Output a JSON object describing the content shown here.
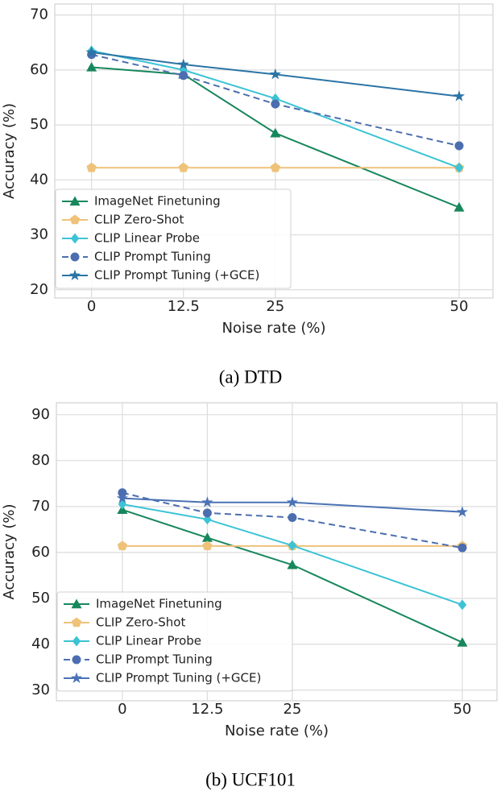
{
  "chart_data": [
    {
      "type": "line",
      "caption": "(a) DTD",
      "xlabel": "Noise rate (%)",
      "ylabel": "Accuracy (%)",
      "x": [
        0,
        12.5,
        25,
        50
      ],
      "xlim": [
        -5,
        54.6
      ],
      "xticks": [
        0,
        12.5,
        25,
        50
      ],
      "ylim": [
        18.5,
        72
      ],
      "yticks": [
        20,
        30,
        40,
        50,
        60,
        70
      ],
      "grid": true,
      "legend": "lower left",
      "series": [
        {
          "name": "ImageNet Finetuning",
          "color": "#17875c",
          "marker": "triangle",
          "dashed": false,
          "values": [
            60.5,
            59.2,
            48.5,
            35.0
          ]
        },
        {
          "name": "CLIP Zero-Shot",
          "color": "#efc27a",
          "marker": "pentagon",
          "dashed": false,
          "values": [
            42.2,
            42.2,
            42.2,
            42.2
          ]
        },
        {
          "name": "CLIP Linear Probe",
          "color": "#3cc3d5",
          "marker": "diamond",
          "dashed": false,
          "values": [
            63.5,
            60.0,
            54.8,
            42.2
          ]
        },
        {
          "name": "CLIP Prompt Tuning",
          "color": "#4c6eb0",
          "marker": "circle",
          "dashed": true,
          "values": [
            62.8,
            59.0,
            53.8,
            46.2
          ]
        },
        {
          "name": "CLIP Prompt Tuning (+GCE)",
          "color": "#2a74a6",
          "marker": "star",
          "dashed": false,
          "values": [
            63.2,
            61.0,
            59.2,
            55.2
          ]
        }
      ]
    },
    {
      "type": "line",
      "caption": "(b) UCF101",
      "xlabel": "Noise rate (%)",
      "ylabel": "Accuracy (%)",
      "x": [
        0,
        12.5,
        25,
        50
      ],
      "xlim": [
        -9.7,
        55.1
      ],
      "xticks": [
        0,
        12.5,
        25,
        50
      ],
      "ylim": [
        27.7,
        92.6
      ],
      "yticks": [
        30,
        40,
        50,
        60,
        70,
        80,
        90
      ],
      "grid": true,
      "legend": "lower left",
      "series": [
        {
          "name": "ImageNet Finetuning",
          "color": "#17875c",
          "marker": "triangle",
          "dashed": false,
          "values": [
            69.3,
            63.2,
            57.3,
            40.4
          ]
        },
        {
          "name": "CLIP Zero-Shot",
          "color": "#efc27a",
          "marker": "pentagon",
          "dashed": false,
          "values": [
            61.4,
            61.4,
            61.4,
            61.4
          ]
        },
        {
          "name": "CLIP Linear Probe",
          "color": "#3cc3d5",
          "marker": "diamond",
          "dashed": false,
          "values": [
            70.5,
            67.2,
            61.5,
            48.6
          ]
        },
        {
          "name": "CLIP Prompt Tuning",
          "color": "#4c6eb0",
          "marker": "circle",
          "dashed": true,
          "values": [
            73.0,
            68.6,
            67.6,
            61.0
          ]
        },
        {
          "name": "CLIP Prompt Tuning (+GCE)",
          "color": "#4a72b5",
          "marker": "star",
          "dashed": false,
          "values": [
            71.8,
            70.9,
            70.9,
            68.8
          ]
        }
      ]
    }
  ]
}
